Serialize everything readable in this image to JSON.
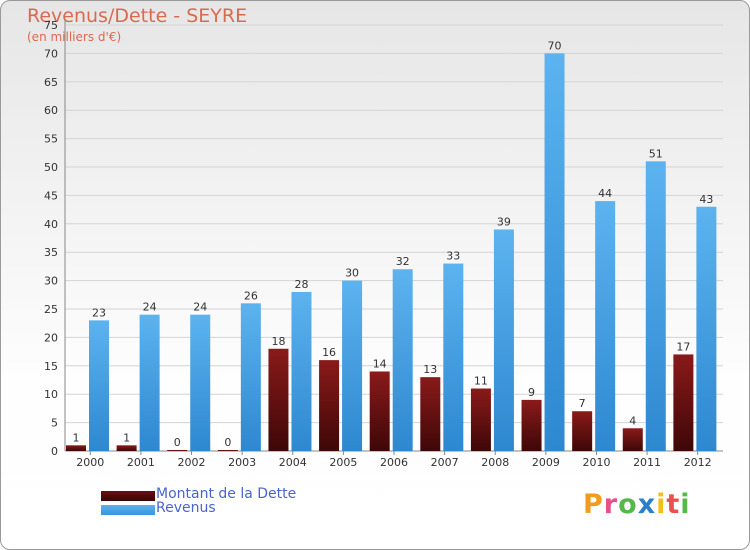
{
  "title": "Revenus/Dette - SEYRE",
  "subtitle": "(en milliers d'€)",
  "legend": [
    {
      "label": "Montant de la Dette",
      "color": "#6b0f0f"
    },
    {
      "label": "Revenus",
      "color": "#3a95dc"
    }
  ],
  "logo": {
    "text": "Proxiti",
    "letters": [
      "P",
      "r",
      "o",
      "x",
      "i",
      "t",
      "i"
    ],
    "colors": [
      "#f29b1f",
      "#e94f8a",
      "#56b848",
      "#2d7ec8",
      "#f2c018",
      "#e94f4f",
      "#56b848"
    ]
  },
  "chart_data": {
    "type": "bar",
    "title": "Revenus/Dette - SEYRE",
    "subtitle": "(en milliers d'€)",
    "xlabel": "",
    "ylabel": "",
    "ylim": [
      0,
      75
    ],
    "yticks": [
      0,
      5,
      10,
      15,
      20,
      25,
      30,
      35,
      40,
      45,
      50,
      55,
      60,
      65,
      70,
      75
    ],
    "grid": true,
    "legend_position": "bottom-left",
    "categories": [
      "2000",
      "2001",
      "2002",
      "2003",
      "2004",
      "2005",
      "2006",
      "2007",
      "2008",
      "2009",
      "2010",
      "2011",
      "2012"
    ],
    "series": [
      {
        "name": "Montant de la Dette",
        "color": "#6b0f0f",
        "values": [
          1,
          1,
          0,
          0,
          18,
          16,
          14,
          13,
          11,
          9,
          7,
          4,
          17
        ]
      },
      {
        "name": "Revenus",
        "color": "#3a95dc",
        "values": [
          23,
          24,
          24,
          26,
          28,
          30,
          32,
          33,
          39,
          70,
          44,
          51,
          43
        ]
      }
    ]
  }
}
